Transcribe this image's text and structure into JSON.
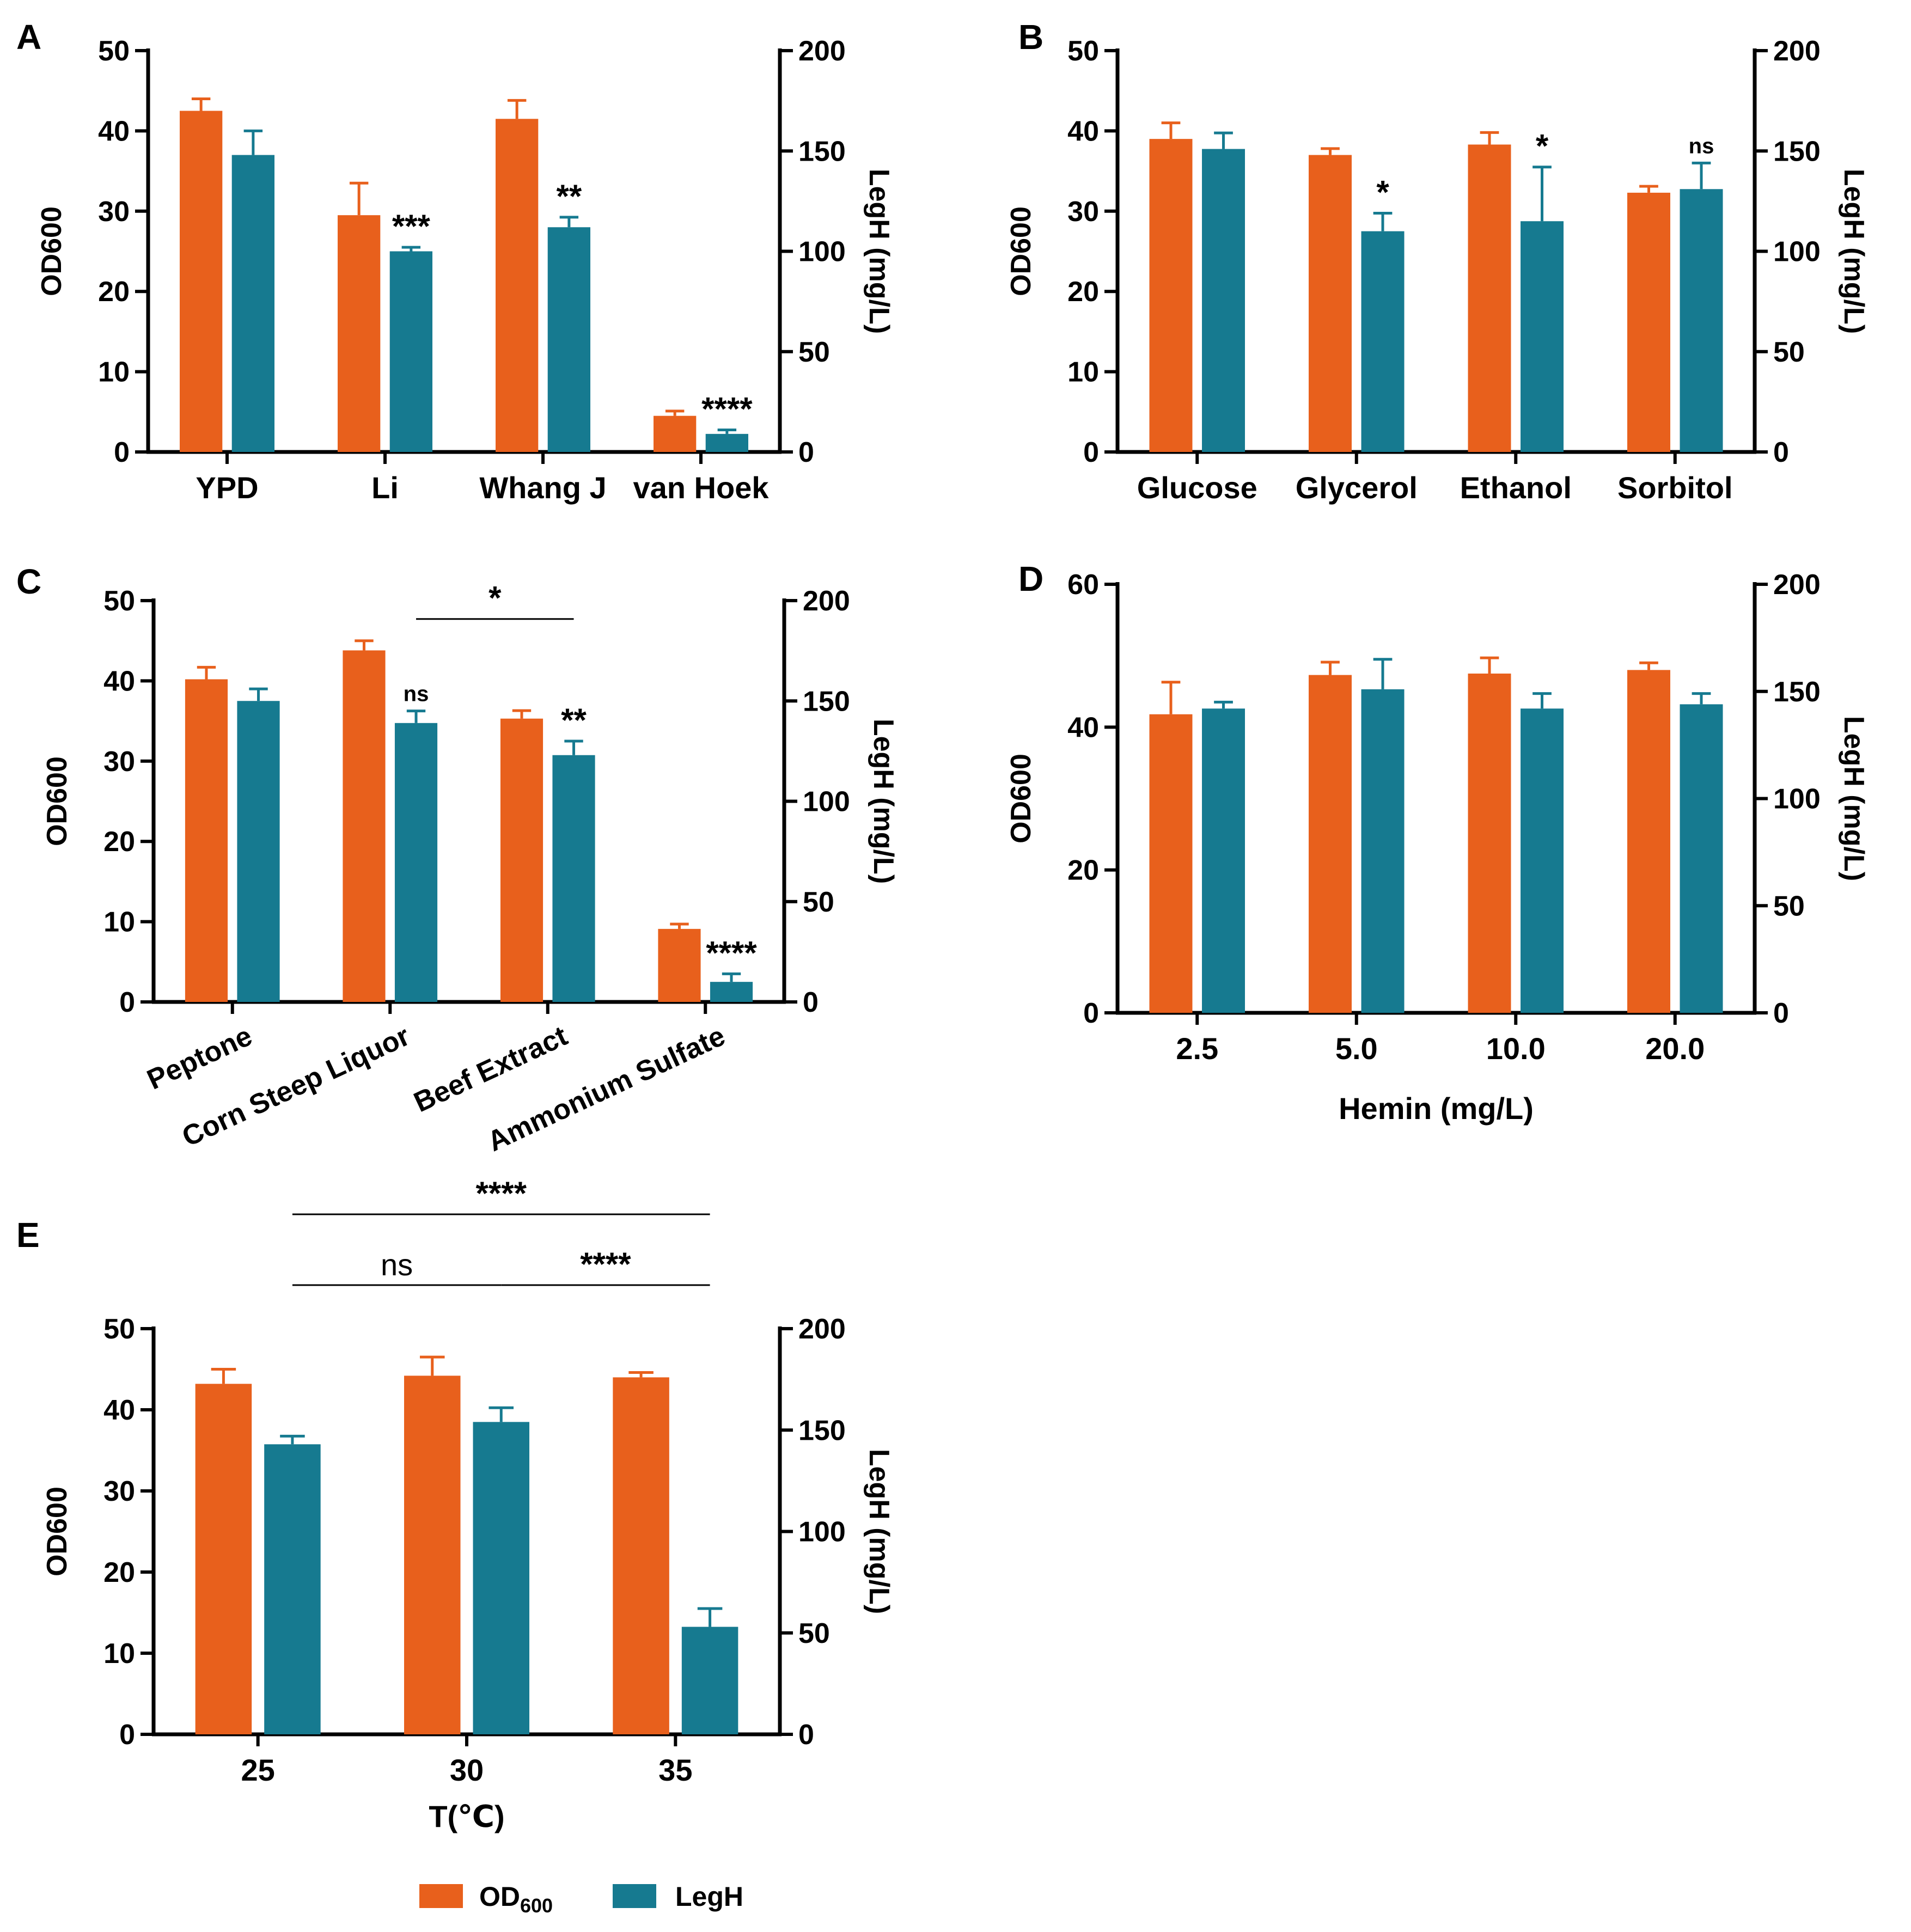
{
  "colors": {
    "od": "#E8601C",
    "legh": "#167A90",
    "axis": "#000000"
  },
  "legend": {
    "od_label": "OD",
    "od_sub": "600",
    "legh_label": "LegH"
  },
  "chart_data": [
    {
      "panel": "A",
      "type": "bar",
      "title": "",
      "categories": [
        "YPD",
        "Li",
        "Whang J",
        "van Hoek"
      ],
      "xlabel": "",
      "ylabel_left": "OD600",
      "ylabel_right": "LegH (mg/L)",
      "ylim_left": [
        0,
        50
      ],
      "yticks_left": [
        0,
        10,
        20,
        30,
        40,
        50
      ],
      "ylim_right": [
        0,
        200
      ],
      "yticks_right": [
        0,
        50,
        100,
        150,
        200
      ],
      "series": [
        {
          "name": "OD600",
          "axis": "left",
          "values": [
            42.5,
            29.5,
            41.5,
            4.5
          ],
          "errors": [
            1.5,
            4.0,
            2.3,
            0.6
          ]
        },
        {
          "name": "LegH",
          "axis": "right",
          "values": [
            148,
            100,
            112,
            9
          ],
          "errors": [
            12,
            2,
            5,
            2
          ]
        }
      ],
      "annotations": [
        {
          "text": "***",
          "category": 1,
          "series": 1
        },
        {
          "text": "**",
          "category": 2,
          "series": 1
        },
        {
          "text": "****",
          "category": 3,
          "series": 1
        }
      ],
      "brackets": []
    },
    {
      "panel": "B",
      "type": "bar",
      "title": "",
      "categories": [
        "Glucose",
        "Glycerol",
        "Ethanol",
        "Sorbitol"
      ],
      "xlabel": "",
      "ylabel_left": "OD600",
      "ylabel_right": "LegH (mg/L)",
      "ylim_left": [
        0,
        50
      ],
      "yticks_left": [
        0,
        10,
        20,
        30,
        40,
        50
      ],
      "ylim_right": [
        0,
        200
      ],
      "yticks_right": [
        0,
        50,
        100,
        150,
        200
      ],
      "series": [
        {
          "name": "OD600",
          "axis": "left",
          "values": [
            39,
            37,
            38.3,
            32.3
          ],
          "errors": [
            2.0,
            0.8,
            1.5,
            0.8
          ]
        },
        {
          "name": "LegH",
          "axis": "right",
          "values": [
            151,
            110,
            115,
            131
          ],
          "errors": [
            8,
            9,
            27,
            13
          ]
        }
      ],
      "annotations": [
        {
          "text": "*",
          "category": 1,
          "series": 1
        },
        {
          "text": "*",
          "category": 2,
          "series": 1
        },
        {
          "text": "ns",
          "category": 3,
          "series": 1
        }
      ],
      "brackets": []
    },
    {
      "panel": "C",
      "type": "bar",
      "title": "",
      "categories": [
        "Peptone",
        "Corn Steep Liquor",
        "Beef Extract",
        "Ammonium Sulfate"
      ],
      "xlabel": "",
      "ylabel_left": "OD600",
      "ylabel_right": "LegH (mg/L)",
      "ylim_left": [
        0,
        50
      ],
      "yticks_left": [
        0,
        10,
        20,
        30,
        40,
        50
      ],
      "ylim_right": [
        0,
        200
      ],
      "yticks_right": [
        0,
        50,
        100,
        150,
        200
      ],
      "series": [
        {
          "name": "OD600",
          "axis": "left",
          "values": [
            40.2,
            43.8,
            35.3,
            9.1
          ],
          "errors": [
            1.5,
            1.2,
            1.0,
            0.6
          ]
        },
        {
          "name": "LegH",
          "axis": "right",
          "values": [
            150,
            139,
            123,
            10
          ],
          "errors": [
            6,
            6,
            7,
            4
          ]
        }
      ],
      "annotations": [
        {
          "text": "ns",
          "category": 1,
          "series": 1
        },
        {
          "text": "**",
          "category": 2,
          "series": 1
        },
        {
          "text": "****",
          "category": 3,
          "series": 1
        }
      ],
      "brackets": [
        {
          "text": "*",
          "from": [
            1,
            1
          ],
          "to": [
            2,
            1
          ],
          "level": 0
        }
      ]
    },
    {
      "panel": "D",
      "type": "bar",
      "title": "",
      "categories": [
        "2.5",
        "5.0",
        "10.0",
        "20.0"
      ],
      "xlabel": "Hemin (mg/L)",
      "ylabel_left": "OD600",
      "ylabel_right": "LegH (mg/L)",
      "ylim_left": [
        0,
        60
      ],
      "yticks_left": [
        0,
        20,
        40,
        60
      ],
      "ylim_right": [
        0,
        200
      ],
      "yticks_right": [
        0,
        50,
        100,
        150,
        200
      ],
      "series": [
        {
          "name": "OD600",
          "axis": "left",
          "values": [
            41.8,
            47.3,
            47.5,
            48
          ],
          "errors": [
            4.5,
            1.8,
            2.2,
            1.0
          ]
        },
        {
          "name": "LegH",
          "axis": "right",
          "values": [
            142,
            151,
            142,
            144
          ],
          "errors": [
            3,
            14,
            7,
            5
          ]
        }
      ],
      "annotations": [],
      "brackets": []
    },
    {
      "panel": "E",
      "type": "bar",
      "title": "",
      "categories": [
        "25",
        "30",
        "35"
      ],
      "xlabel": "T(℃)",
      "ylabel_left": "OD600",
      "ylabel_right": "LegH (mg/L)",
      "ylim_left": [
        0,
        50
      ],
      "yticks_left": [
        0,
        10,
        20,
        30,
        40,
        50
      ],
      "ylim_right": [
        0,
        200
      ],
      "yticks_right": [
        0,
        50,
        100,
        150,
        200
      ],
      "series": [
        {
          "name": "OD600",
          "axis": "left",
          "values": [
            43.2,
            44.2,
            44
          ],
          "errors": [
            1.8,
            2.3,
            0.6
          ]
        },
        {
          "name": "LegH",
          "axis": "right",
          "values": [
            143,
            154,
            53
          ],
          "errors": [
            4,
            7,
            9
          ]
        }
      ],
      "annotations": [],
      "brackets": [
        {
          "text": "ns",
          "from": [
            0,
            1
          ],
          "to": [
            1,
            1
          ],
          "level": 0,
          "style": "thin"
        },
        {
          "text": "****",
          "from": [
            1,
            1
          ],
          "to": [
            2,
            1
          ],
          "level": 0
        },
        {
          "text": "****",
          "from": [
            0,
            1
          ],
          "to": [
            2,
            1
          ],
          "level": 1
        }
      ]
    }
  ]
}
